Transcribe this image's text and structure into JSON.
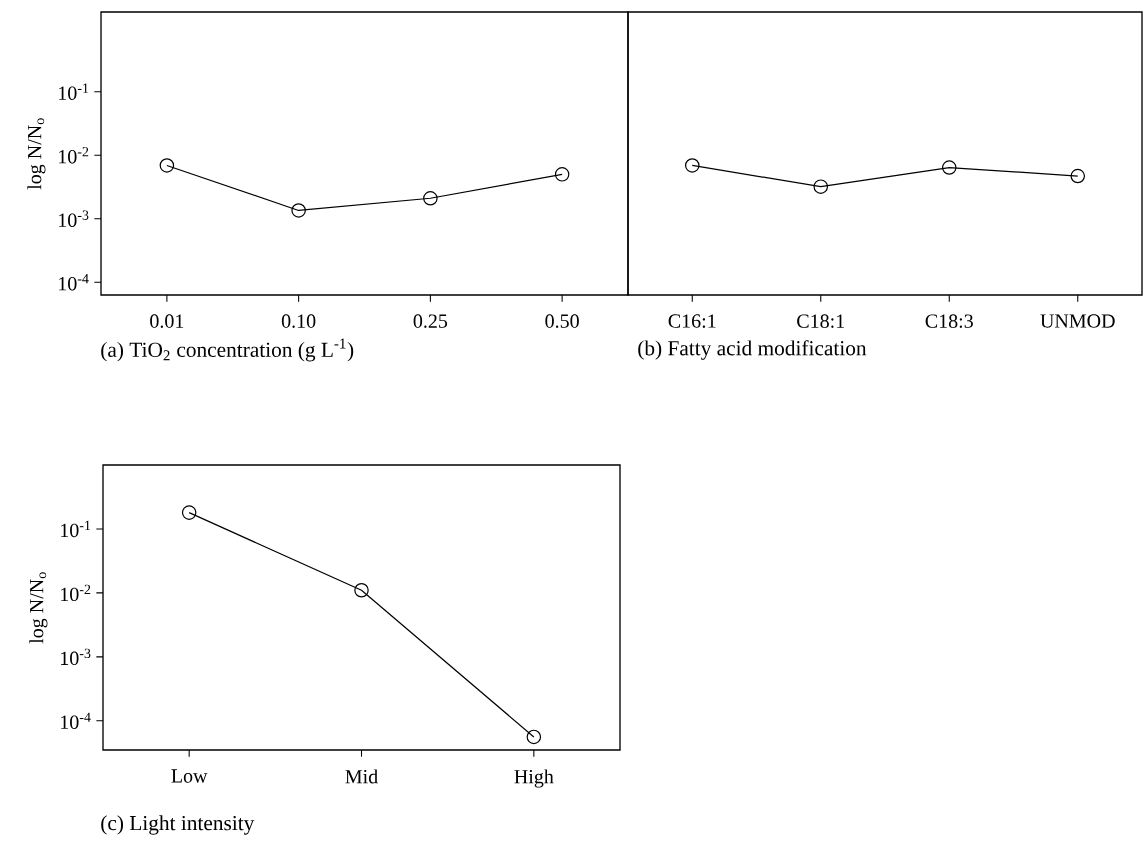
{
  "chart_data": [
    {
      "type": "line",
      "categories": [
        "0.01",
        "0.10",
        "0.25",
        "0.50"
      ],
      "ylabel": "log N/N$_{o}$",
      "log": true,
      "marker": "circle",
      "grid": false,
      "series": [
        {
          "color": "#000000",
          "values": [
            0.0069,
            0.00135,
            0.0021,
            0.005
          ]
        }
      ],
      "ylim": [
        6.3e-05,
        1.8
      ],
      "yticks": [
        {
          "value": 0.0001,
          "label": "10$^{-4}$"
        },
        {
          "value": 0.001,
          "label": "10$^{-3}$"
        },
        {
          "value": 0.01,
          "label": "10$^{-2}$"
        },
        {
          "value": 0.1,
          "label": "10$^{-1}$"
        }
      ],
      "annotations": [
        "(a) TiO$_{2}$ concentration (g L$^{-1}$)"
      ]
    },
    {
      "type": "line",
      "categories": [
        "C16:1",
        "C18:1",
        "C18:3",
        "UNMOD"
      ],
      "log": true,
      "marker": "circle",
      "grid": false,
      "tick_labels": "x",
      "series": [
        {
          "color": "#000000",
          "values": [
            0.0069,
            0.0032,
            0.0064,
            0.0047
          ]
        }
      ],
      "ylim": [
        6.3e-05,
        1.8
      ],
      "annotations": [
        "(b) Fatty acid modification"
      ]
    },
    {
      "type": "line",
      "categories": [
        "Low",
        "Mid",
        "High"
      ],
      "ylabel": "log N/N$_{o}$",
      "log": true,
      "marker": "circle",
      "grid": false,
      "series": [
        {
          "color": "#000000",
          "values": [
            0.18,
            0.011,
            5.6e-05
          ]
        }
      ],
      "ylim": [
        3.5e-05,
        1
      ],
      "yticks": [
        {
          "value": 0.0001,
          "label": "10$^{-4}$"
        },
        {
          "value": 0.001,
          "label": "10$^{-3}$"
        },
        {
          "value": 0.01,
          "label": "10$^{-2}$"
        },
        {
          "value": 0.1,
          "label": "10$^{-1}$"
        }
      ],
      "annotations": [
        "(c) Light intensity"
      ]
    }
  ]
}
